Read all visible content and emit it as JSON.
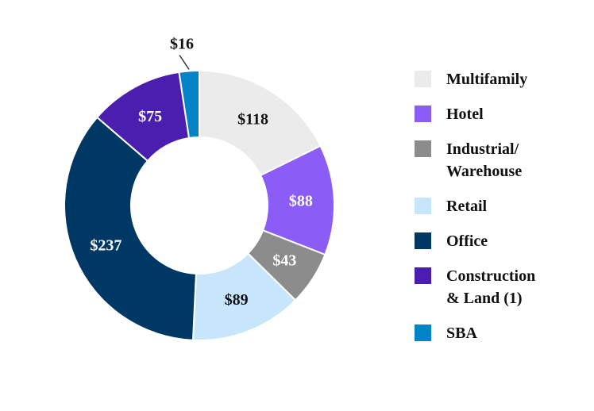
{
  "chart_data": {
    "type": "pie",
    "style": "donut",
    "categories": [
      "Multifamily",
      "Hotel",
      "Industrial/\nWarehouse",
      "Retail",
      "Office",
      "Construction\n& Land (1)",
      "SBA"
    ],
    "values": [
      118,
      88,
      43,
      89,
      237,
      75,
      16
    ],
    "value_labels": [
      "$118",
      "$88",
      "$43",
      "$89",
      "$237",
      "$75",
      "$16"
    ],
    "colors": [
      "#ebebeb",
      "#8b5cf6",
      "#8c8c8c",
      "#c7e5fb",
      "#003865",
      "#4a1fb0",
      "#0284c7"
    ],
    "label_colors": [
      "#111111",
      "#ffffff",
      "#ffffff",
      "#111111",
      "#ffffff",
      "#ffffff",
      "#111111"
    ],
    "legend_position": "right"
  }
}
